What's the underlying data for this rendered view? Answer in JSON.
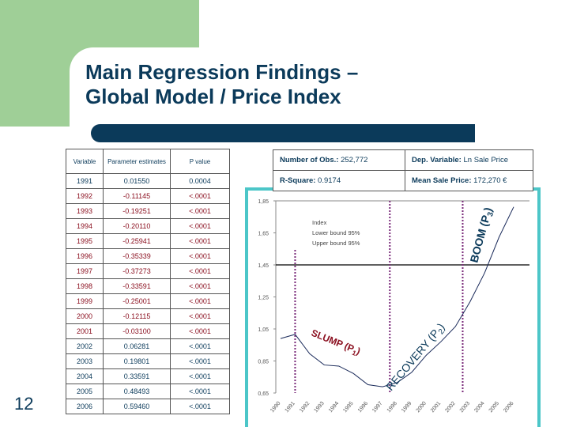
{
  "slide": {
    "title_line1": "Main Regression Findings –",
    "title_line2": "Global Model / Price Index",
    "page_number": "12"
  },
  "table": {
    "headers": [
      "Variable",
      "Parameter estimates",
      "P value"
    ],
    "rows": [
      [
        "1991",
        "0.01550",
        "0.0004"
      ],
      [
        "1992",
        "-0.11145",
        "<.0001"
      ],
      [
        "1993",
        "-0.19251",
        "<.0001"
      ],
      [
        "1994",
        "-0.20110",
        "<.0001"
      ],
      [
        "1995",
        "-0.25941",
        "<.0001"
      ],
      [
        "1996",
        "-0.35339",
        "<.0001"
      ],
      [
        "1997",
        "-0.37273",
        "<.0001"
      ],
      [
        "1998",
        "-0.33591",
        "<.0001"
      ],
      [
        "1999",
        "-0.25001",
        "<.0001"
      ],
      [
        "2000",
        "-0.12115",
        "<.0001"
      ],
      [
        "2001",
        "-0.03100",
        "<.0001"
      ],
      [
        "2002",
        "0.06281",
        "<.0001"
      ],
      [
        "2003",
        "0.19801",
        "<.0001"
      ],
      [
        "2004",
        "0.33591",
        "<.0001"
      ],
      [
        "2005",
        "0.48493",
        "<.0001"
      ],
      [
        "2006",
        "0.59460",
        "<.0001"
      ]
    ]
  },
  "info": {
    "obs_label": "Number of Obs.:",
    "obs_value": "252,772",
    "dep_label": "Dep. Variable:",
    "dep_value": "Ln Sale Price",
    "r2_label": "R-Square:",
    "r2_value": "0.9174",
    "mean_label": "Mean Sale  Price:",
    "mean_value": "172,270 €"
  },
  "chart_data": {
    "type": "line",
    "x": [
      "1990",
      "1991",
      "1992",
      "1993",
      "1994",
      "1995",
      "1996",
      "1997",
      "1998",
      "1999",
      "2000",
      "2001",
      "2002",
      "2003",
      "2004",
      "2005",
      "2006"
    ],
    "series": [
      {
        "name": "Index",
        "values": [
          0.99,
          1.016,
          0.895,
          0.825,
          0.818,
          0.772,
          0.702,
          0.689,
          0.715,
          0.779,
          0.886,
          0.97,
          1.065,
          1.219,
          1.399,
          1.624,
          1.812
        ]
      }
    ],
    "legend": [
      "Index",
      "Lower bound 95%",
      "Upper bound 95%"
    ],
    "yticks": [
      "1,85",
      "1,65",
      "1,45",
      "1,25",
      "1,05",
      "0,85",
      "0,65"
    ],
    "ylim": [
      0.65,
      1.85
    ],
    "reference_line": 1.45,
    "period_markers": [
      1991,
      1997.5,
      2002.5
    ],
    "annotations": [
      {
        "text": "SLUMP (P",
        "sub": "1",
        "color": "#8b1020"
      },
      {
        "text": "RECOVERY (P",
        "sub": "2",
        "color": "#0b3a5a"
      },
      {
        "text": "BOOM (P",
        "sub": "3",
        "color": "#0b3a5a"
      }
    ],
    "colors": {
      "line": "#1a2a5a",
      "markers": "#7a2a7a",
      "axis": "#888888"
    }
  }
}
